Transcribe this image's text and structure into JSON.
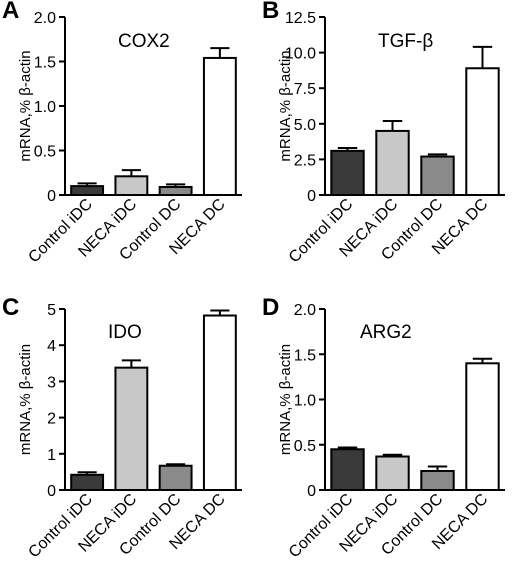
{
  "figure": {
    "panels": [
      {
        "letter": "A",
        "chart_index": 0
      },
      {
        "letter": "B",
        "chart_index": 1
      },
      {
        "letter": "C",
        "chart_index": 2
      },
      {
        "letter": "D",
        "chart_index": 3
      }
    ]
  },
  "colors": {
    "control_idc": "#3a3a3a",
    "neca_idc": "#c8c8c8",
    "control_dc": "#8a8a8a",
    "neca_dc": "#ffffff",
    "stroke": "#000000"
  },
  "chart_data": [
    {
      "panel": "A",
      "type": "bar",
      "title": "COX2",
      "ylabel": "mRNA,%  β-actin",
      "categories": [
        "Control iDC",
        "NECA iDC",
        "Control DC",
        "NECA DC"
      ],
      "values": [
        0.1,
        0.21,
        0.09,
        1.54
      ],
      "errors": [
        0.03,
        0.07,
        0.03,
        0.11
      ],
      "ylim": [
        0,
        2.0
      ],
      "yticks": [
        "0",
        "0.5",
        "1.0",
        "1.5",
        "2.0"
      ],
      "ytick_values": [
        0,
        0.5,
        1.0,
        1.5,
        2.0
      ],
      "grid": false
    },
    {
      "panel": "B",
      "type": "bar",
      "title": "TGF-β",
      "ylabel": "mRNA,%  β-actin",
      "categories": [
        "Control iDC",
        "NECA iDC",
        "Control DC",
        "NECA DC"
      ],
      "values": [
        3.1,
        4.5,
        2.7,
        8.9
      ],
      "errors": [
        0.2,
        0.7,
        0.15,
        1.5
      ],
      "ylim": [
        0,
        12.5
      ],
      "yticks": [
        "0",
        "2.5",
        "5.0",
        "7.5",
        "10.0",
        "12.5"
      ],
      "ytick_values": [
        0,
        2.5,
        5.0,
        7.5,
        10.0,
        12.5
      ],
      "grid": false
    },
    {
      "panel": "C",
      "type": "bar",
      "title": "IDO",
      "ylabel": "mRNA,%  β-actin",
      "categories": [
        "Control iDC",
        "NECA iDC",
        "Control DC",
        "NECA DC"
      ],
      "values": [
        0.42,
        3.38,
        0.67,
        4.82
      ],
      "errors": [
        0.07,
        0.2,
        0.04,
        0.14
      ],
      "ylim": [
        0,
        5
      ],
      "yticks": [
        "0",
        "1",
        "2",
        "3",
        "4",
        "5"
      ],
      "ytick_values": [
        0,
        1,
        2,
        3,
        4,
        5
      ],
      "grid": false
    },
    {
      "panel": "D",
      "type": "bar",
      "title": "ARG2",
      "ylabel": "mRNA,%  β-actin",
      "categories": [
        "Control iDC",
        "NECA iDC",
        "Control DC",
        "NECA DC"
      ],
      "values": [
        0.45,
        0.37,
        0.21,
        1.4
      ],
      "errors": [
        0.02,
        0.02,
        0.05,
        0.05
      ],
      "ylim": [
        0,
        2.0
      ],
      "yticks": [
        "0",
        "0.5",
        "1.0",
        "1.5",
        "2.0"
      ],
      "ytick_values": [
        0,
        0.5,
        1.0,
        1.5,
        2.0
      ],
      "grid": false
    }
  ]
}
